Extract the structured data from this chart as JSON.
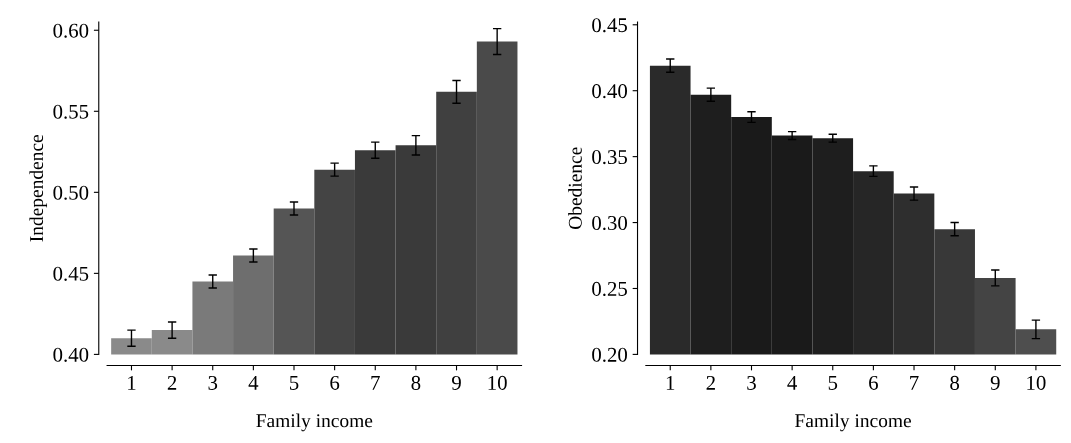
{
  "chart_data": [
    {
      "type": "bar",
      "xlabel": "Family income",
      "ylabel": "Independence",
      "categories": [
        "1",
        "2",
        "3",
        "4",
        "5",
        "6",
        "7",
        "8",
        "9",
        "10"
      ],
      "values": [
        0.41,
        0.415,
        0.445,
        0.461,
        0.49,
        0.514,
        0.526,
        0.529,
        0.562,
        0.593
      ],
      "errors": [
        0.005,
        0.005,
        0.004,
        0.004,
        0.004,
        0.004,
        0.005,
        0.006,
        0.007,
        0.008
      ],
      "colors": [
        "#8a8a8a",
        "#8a8a8a",
        "#7a7a7a",
        "#6e6e6e",
        "#555555",
        "#444444",
        "#3a3a3a",
        "#3a3a3a",
        "#404040",
        "#4a4a4a"
      ],
      "ylim": [
        0.4,
        0.605
      ],
      "yticks": [
        {
          "value": 0.4,
          "label": "0.40"
        },
        {
          "value": 0.45,
          "label": "0.45"
        },
        {
          "value": 0.5,
          "label": "0.50"
        },
        {
          "value": 0.55,
          "label": "0.55"
        },
        {
          "value": 0.6,
          "label": "0.60"
        }
      ],
      "grid": false
    },
    {
      "type": "bar",
      "xlabel": "Family income",
      "ylabel": "Obedience",
      "categories": [
        "1",
        "2",
        "3",
        "4",
        "5",
        "6",
        "7",
        "8",
        "9",
        "10"
      ],
      "values": [
        0.419,
        0.397,
        0.38,
        0.366,
        0.364,
        0.339,
        0.322,
        0.295,
        0.258,
        0.219
      ],
      "errors": [
        0.005,
        0.005,
        0.004,
        0.003,
        0.003,
        0.004,
        0.005,
        0.005,
        0.006,
        0.007
      ],
      "colors": [
        "#2a2a2a",
        "#1e1e1e",
        "#1a1a1a",
        "#1a1a1a",
        "#1e1e1e",
        "#262626",
        "#2e2e2e",
        "#383838",
        "#444444",
        "#4e4e4e"
      ],
      "ylim": [
        0.2,
        0.452
      ],
      "yticks": [
        {
          "value": 0.2,
          "label": "0.20"
        },
        {
          "value": 0.25,
          "label": "0.25"
        },
        {
          "value": 0.3,
          "label": "0.30"
        },
        {
          "value": 0.35,
          "label": "0.35"
        },
        {
          "value": 0.4,
          "label": "0.40"
        },
        {
          "value": 0.45,
          "label": "0.45"
        }
      ],
      "grid": false
    }
  ]
}
